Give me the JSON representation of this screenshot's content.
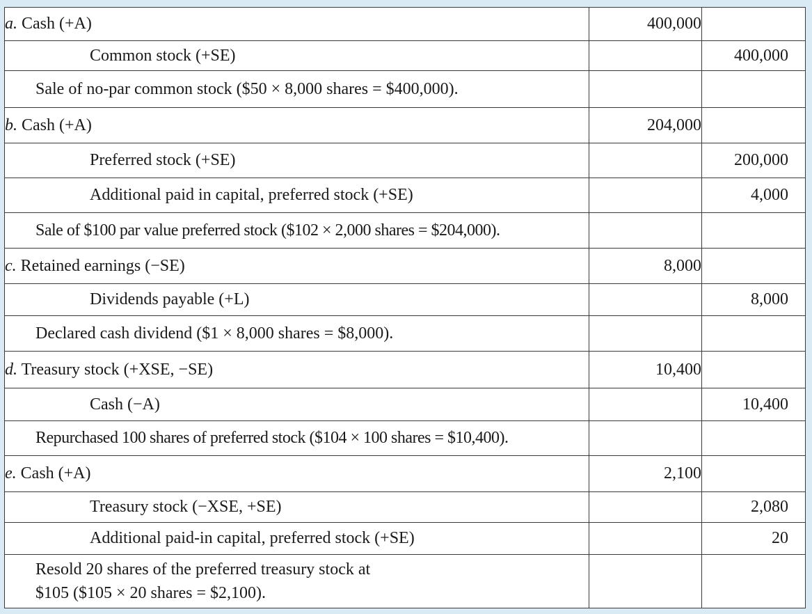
{
  "entries": [
    {
      "letter": "a.",
      "debit_account": "Cash (+A)",
      "debit_amount": "400,000",
      "credits": [
        {
          "account": "Common stock (+SE)",
          "amount": "400,000"
        }
      ],
      "explanation_lines": [
        "Sale of no-par common stock ($50 × 8,000 shares = $400,000)."
      ]
    },
    {
      "letter": "b.",
      "debit_account": "Cash (+A)",
      "debit_amount": "204,000",
      "credits": [
        {
          "account": "Preferred stock (+SE)",
          "amount": "200,000"
        },
        {
          "account": "Additional paid in capital, preferred stock (+SE)",
          "amount": "4,000"
        }
      ],
      "explanation_lines": [
        "Sale of $100 par value preferred stock ($102 × 2,000 shares = $204,000)."
      ]
    },
    {
      "letter": "c.",
      "debit_account": "Retained earnings (−SE)",
      "debit_amount": "8,000",
      "credits": [
        {
          "account": "Dividends payable (+L)",
          "amount": "8,000"
        }
      ],
      "explanation_lines": [
        "Declared cash dividend ($1 × 8,000 shares = $8,000)."
      ]
    },
    {
      "letter": "d.",
      "debit_account": "Treasury stock (+XSE, −SE)",
      "debit_amount": "10,400",
      "credits": [
        {
          "account": "Cash (−A)",
          "amount": "10,400"
        }
      ],
      "explanation_lines": [
        "Repurchased 100 shares of preferred stock ($104 × 100 shares = $10,400)."
      ]
    },
    {
      "letter": "e.",
      "debit_account": "Cash (+A)",
      "debit_amount": "2,100",
      "credits": [
        {
          "account": "Treasury stock (−XSE, +SE)",
          "amount": "2,080"
        },
        {
          "account": "Additional paid-in capital, preferred stock (+SE)",
          "amount": "20"
        }
      ],
      "explanation_lines": [
        "Resold 20 shares of the preferred treasury stock at",
        "$105 ($105 × 20 shares = $2,100)."
      ]
    }
  ],
  "colors": {
    "background": "#daeaf5",
    "sheet": "#ffffff",
    "rule": "#3a3a3a",
    "text": "#1a1a1a"
  }
}
